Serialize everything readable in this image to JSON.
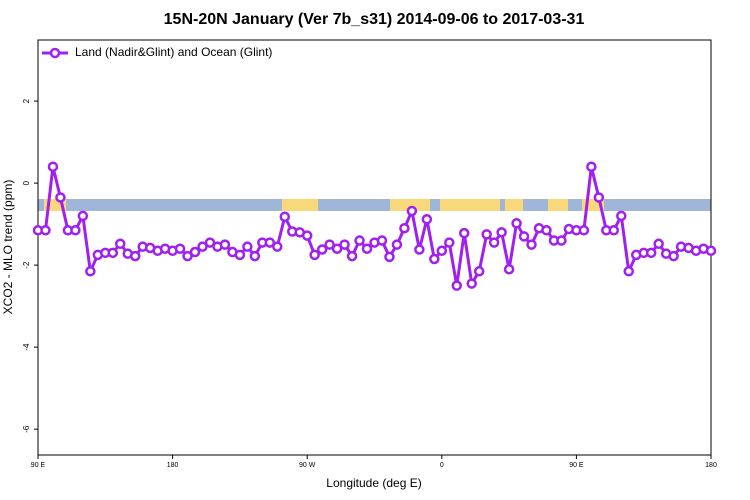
{
  "chart_data": {
    "type": "line",
    "title": "15N-20N January (Ver 7b_s31)   2014-09-06 to 2017-03-31",
    "xlabel": "Longitude (deg E)",
    "ylabel": "XCO2 - MLO trend (ppm)",
    "xlim": [
      90,
      540
    ],
    "ylim": [
      -6.63,
      3.49
    ],
    "xticks": [
      {
        "value": 90,
        "label": "90 E"
      },
      180,
      {
        "value": 270,
        "label": "90 W"
      },
      {
        "value": 360,
        "label": "0"
      },
      {
        "value": 450,
        "label": "90 E"
      },
      {
        "value": 540,
        "label": "180"
      }
    ],
    "yticks": [
      -6,
      -4,
      -2,
      0,
      2
    ],
    "legend": "upper left",
    "x": [
      90,
      95,
      100,
      105,
      110,
      115,
      120,
      125,
      130,
      135,
      140,
      145,
      150,
      155,
      160,
      165,
      170,
      175,
      180,
      185,
      190,
      195,
      200,
      205,
      210,
      215,
      220,
      225,
      230,
      235,
      240,
      245,
      250,
      255,
      260,
      265,
      270,
      275,
      280,
      285,
      290,
      295,
      300,
      305,
      310,
      315,
      320,
      325,
      330,
      335,
      340,
      345,
      350,
      355,
      360,
      365,
      370,
      375,
      380,
      385,
      390,
      395,
      400,
      405,
      410,
      415,
      420,
      425,
      430,
      435,
      440,
      445,
      450,
      455,
      460,
      465,
      470,
      475,
      480,
      485,
      490,
      495,
      500,
      505,
      510,
      515,
      520,
      525,
      530,
      535,
      540
    ],
    "series": [
      {
        "name": "Land (Nadir&Glint) and Ocean (Glint)",
        "color": "#a020f0",
        "values": [
          -1.15,
          -1.15,
          0.4,
          -0.35,
          -1.15,
          -1.15,
          -0.8,
          -2.15,
          -1.75,
          -1.7,
          -1.7,
          -1.48,
          -1.72,
          -1.78,
          -1.55,
          -1.58,
          -1.65,
          -1.6,
          -1.65,
          -1.6,
          -1.78,
          -1.68,
          -1.55,
          -1.45,
          -1.55,
          -1.5,
          -1.68,
          -1.75,
          -1.55,
          -1.78,
          -1.45,
          -1.45,
          -1.55,
          -0.82,
          -1.18,
          -1.2,
          -1.28,
          -1.75,
          -1.62,
          -1.5,
          -1.6,
          -1.5,
          -1.78,
          -1.4,
          -1.6,
          -1.45,
          -1.4,
          -1.8,
          -1.5,
          -1.1,
          -0.68,
          -1.62,
          -0.88,
          -1.85,
          -1.65,
          -1.45,
          -2.5,
          -1.22,
          -2.45,
          -2.15,
          -1.25,
          -1.45,
          -1.2,
          -2.1,
          -0.98,
          -1.3,
          -1.5,
          -1.1,
          -1.15,
          -1.4,
          -1.4,
          -1.12,
          -1.15,
          -1.15,
          0.4,
          -0.35,
          -1.15,
          -1.15,
          -0.8,
          -2.15,
          -1.75,
          -1.7,
          -1.7,
          -1.48,
          -1.72,
          -1.78,
          -1.55,
          -1.58,
          -1.65,
          -1.6,
          -1.65
        ]
      }
    ]
  }
}
